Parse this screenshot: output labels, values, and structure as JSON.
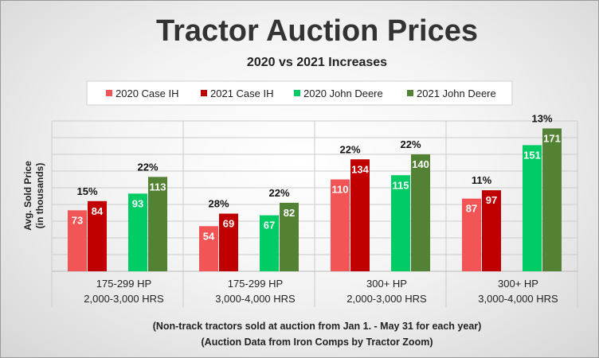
{
  "chart_data": {
    "type": "bar",
    "title": "Tractor Auction Prices",
    "subtitle": "2020 vs 2021 Increases",
    "ylabel_lines": [
      "Avg. Sold Price",
      "(in thousands)"
    ],
    "ylim": [
      0,
      180
    ],
    "grid": true,
    "legend_position": "top",
    "categories": [
      [
        "175-299 HP",
        "2,000-3,000 HRS"
      ],
      [
        "175-299 HP",
        "3,000-4,000 HRS"
      ],
      [
        "300+ HP",
        "2,000-3,000 HRS"
      ],
      [
        "300+ HP",
        "3,000-4,000 HRS"
      ]
    ],
    "series": [
      {
        "name": "2020 Case IH",
        "color": "#f25555",
        "values": [
          73,
          54,
          110,
          87
        ]
      },
      {
        "name": "2021 Case IH",
        "color": "#c00000",
        "values": [
          84,
          69,
          134,
          97
        ]
      },
      {
        "name": "2020 John Deere",
        "color": "#00cc66",
        "values": [
          93,
          67,
          115,
          151
        ]
      },
      {
        "name": "2021 John Deere",
        "color": "#548235",
        "values": [
          113,
          82,
          140,
          171
        ]
      }
    ],
    "increase_labels": {
      "case_ih": [
        "15%",
        "28%",
        "22%",
        "11%"
      ],
      "john_deere": [
        "22%",
        "22%",
        "22%",
        "13%"
      ]
    },
    "notes": [
      "(Non-track tractors sold at auction from Jan 1. - May 31 for each year)",
      "(Auction Data from Iron Comps by Tractor Zoom)"
    ]
  }
}
